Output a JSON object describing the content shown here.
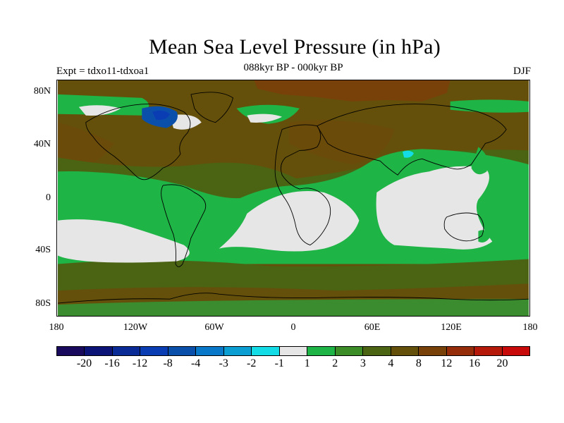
{
  "title": "Mean Sea Level Pressure (in hPa)",
  "subtitle": "088kyr BP - 000kyr BP",
  "experiment": "Expt = tdxo11-tdxoa1",
  "season": "DJF",
  "lat_labels": [
    "80N",
    "40N",
    "0",
    "40S",
    "80S"
  ],
  "lon_labels": [
    "180",
    "120W",
    "60W",
    "0",
    "60E",
    "120E",
    "180"
  ],
  "colorbar": {
    "colors": [
      "#1a0a5e",
      "#0c1478",
      "#0a2a96",
      "#0a3cb4",
      "#0a50aa",
      "#0a78c8",
      "#0a9ed2",
      "#14dce6",
      "#e6e6e6",
      "#1eb446",
      "#3c8c28",
      "#4b6414",
      "#64500a",
      "#78410a",
      "#962d0a",
      "#b4190a",
      "#c80a0a"
    ],
    "labels": [
      "-20",
      "-16",
      "-12",
      "-8",
      "-4",
      "-3",
      "-2",
      "-1",
      "1",
      "2",
      "3",
      "4",
      "8",
      "12",
      "16",
      "20"
    ]
  },
  "region_colors": {
    "light_gray": "#e6e6e6",
    "green": "#1eb446",
    "olive": "#4b6414",
    "brown": "#64500a",
    "rust": "#78410a",
    "blue": "#0a50aa",
    "cyan": "#14dce6"
  }
}
